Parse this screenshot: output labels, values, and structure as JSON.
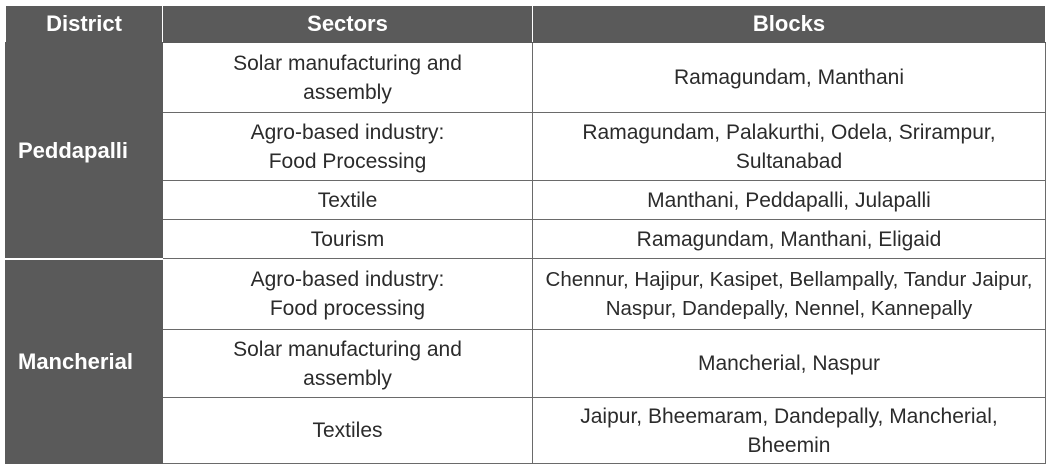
{
  "headers": {
    "district": "District",
    "sectors": "Sectors",
    "blocks": "Blocks"
  },
  "districts": [
    {
      "name": "Peddapalli",
      "rows": [
        {
          "sector": "Solar manufacturing and assembly",
          "blocks": "Ramagundam, Manthani"
        },
        {
          "sector": "Agro-based industry: Food Processing",
          "blocks": "Ramagundam, Palakurthi, Odela, Srirampur, Sultanabad"
        },
        {
          "sector": "Textile",
          "blocks": "Manthani, Peddapalli, Julapalli"
        },
        {
          "sector": "Tourism",
          "blocks": "Ramagundam, Manthani, Eligaid"
        }
      ]
    },
    {
      "name": "Mancherial",
      "rows": [
        {
          "sector": "Agro-based industry: Food processing",
          "blocks": "Chennur, Hajipur, Kasipet, Bellampally, Tandur Jaipur, Naspur, Dandepally, Nennel, Kannepally"
        },
        {
          "sector": "Solar manufacturing and assembly",
          "blocks": "Mancherial, Naspur"
        },
        {
          "sector": "Textiles",
          "blocks": "Jaipur, Bheemaram, Dandepally, Mancherial, Bheemin"
        }
      ]
    }
  ],
  "colors": {
    "header_bg": "#5a5a5a",
    "header_text": "#ffffff",
    "cell_text": "#2b2b2b",
    "border": "#6a6a6a"
  }
}
